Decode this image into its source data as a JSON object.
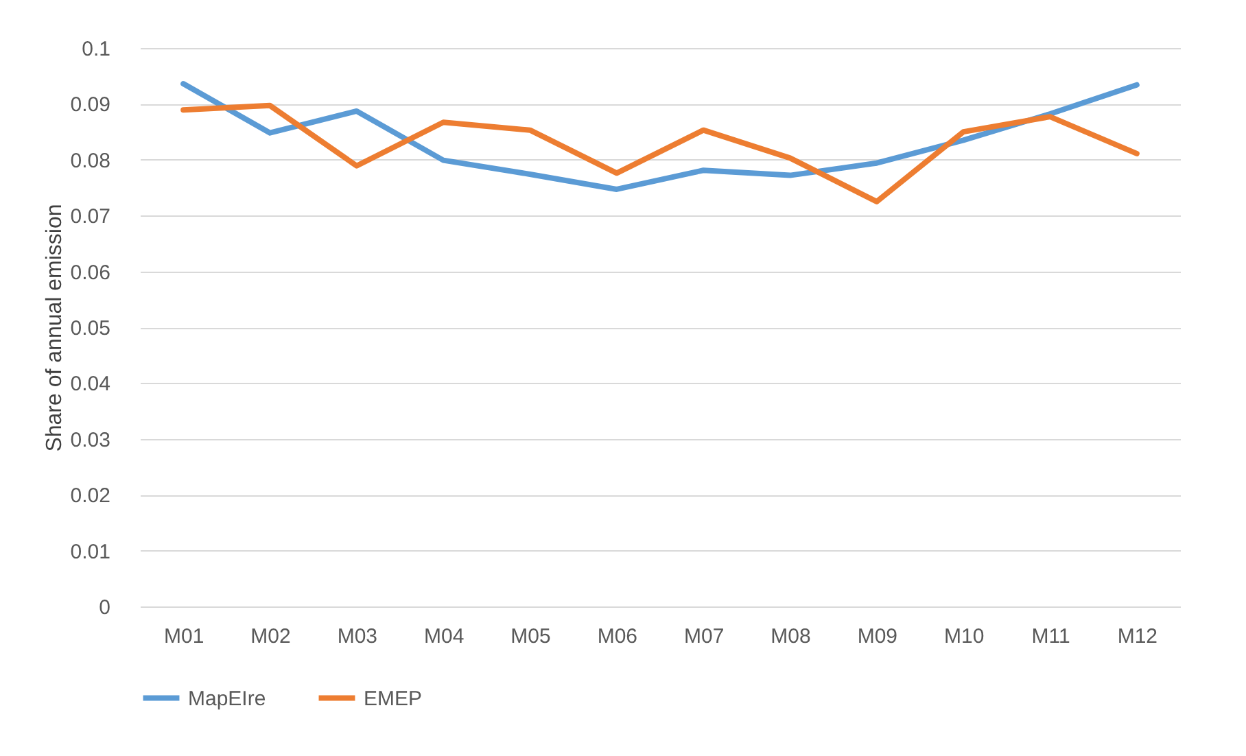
{
  "chart_data": {
    "type": "line",
    "ylabel": "Share of annual emission",
    "categories": [
      "M01",
      "M02",
      "M03",
      "M04",
      "M05",
      "M06",
      "M07",
      "M08",
      "M09",
      "M10",
      "M11",
      "M12"
    ],
    "series": [
      {
        "name": "MapEIre",
        "color": "#5b9bd5",
        "values": [
          0.0936,
          0.0848,
          0.0887,
          0.0799,
          0.0774,
          0.0747,
          0.0781,
          0.0772,
          0.0794,
          0.0835,
          0.0882,
          0.0934
        ]
      },
      {
        "name": "EMEP",
        "color": "#ed7d31",
        "values": [
          0.0889,
          0.0897,
          0.0789,
          0.0867,
          0.0853,
          0.0776,
          0.0853,
          0.0803,
          0.0725,
          0.085,
          0.0877,
          0.0811
        ]
      }
    ],
    "ylim": [
      0,
      0.1
    ],
    "yticks": [
      0,
      0.01,
      0.02,
      0.03,
      0.04,
      0.05,
      0.06,
      0.07,
      0.08,
      0.09,
      0.1
    ],
    "grid": "y",
    "legend": "bottom",
    "marker": "none",
    "line_style": "solid"
  }
}
